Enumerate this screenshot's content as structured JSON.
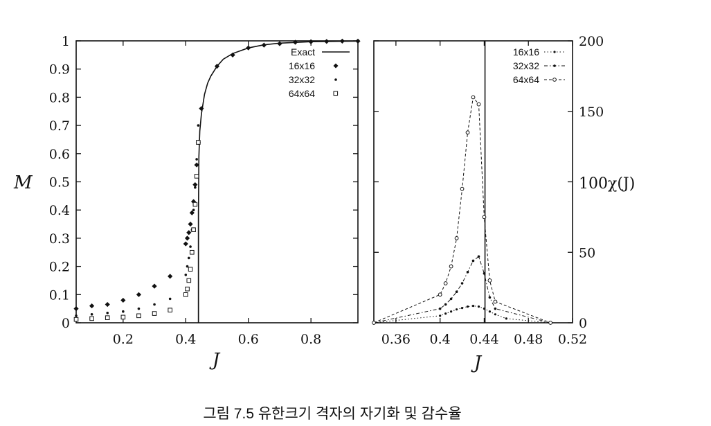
{
  "caption": "그림 7.5  유한크기 격자의 자기화 및 감수율",
  "chart_data": [
    {
      "type": "scatter",
      "xlabel": "J",
      "ylabel": "M",
      "xlim": [
        0.05,
        0.95
      ],
      "ylim": [
        0,
        1
      ],
      "xticks": [
        0.2,
        0.4,
        0.6,
        0.8
      ],
      "xtick_labels": [
        "0.2",
        "0.4",
        "0.6",
        "0.8"
      ],
      "yticks": [
        0,
        0.1,
        0.2,
        0.3,
        0.4,
        0.5,
        0.6,
        0.7,
        0.8,
        0.9,
        1
      ],
      "ytick_labels": [
        "0",
        "0.1",
        "0.2",
        "0.3",
        "0.4",
        "0.5",
        "0.6",
        "0.7",
        "0.8",
        "0.9",
        "1"
      ],
      "critical_J": 0.4407,
      "legend_position": "top-right",
      "series": [
        {
          "name": "Exact",
          "style": "line",
          "x": [
            0.4407,
            0.4407,
            0.442,
            0.445,
            0.45,
            0.46,
            0.47,
            0.48,
            0.5,
            0.52,
            0.55,
            0.6,
            0.65,
            0.7,
            0.8,
            0.95
          ],
          "y": [
            0,
            0.4,
            0.59,
            0.68,
            0.74,
            0.81,
            0.85,
            0.875,
            0.91,
            0.935,
            0.955,
            0.975,
            0.986,
            0.992,
            0.997,
            0.999
          ]
        },
        {
          "name": "16x16",
          "style": "filled-diamond",
          "x": [
            0.05,
            0.1,
            0.15,
            0.2,
            0.25,
            0.3,
            0.35,
            0.4,
            0.405,
            0.41,
            0.415,
            0.42,
            0.425,
            0.43,
            0.435,
            0.44,
            0.45,
            0.5,
            0.55,
            0.6,
            0.65,
            0.7,
            0.75,
            0.8,
            0.85,
            0.9,
            0.95
          ],
          "y": [
            0.05,
            0.06,
            0.065,
            0.08,
            0.1,
            0.13,
            0.165,
            0.28,
            0.3,
            0.32,
            0.35,
            0.39,
            0.43,
            0.49,
            0.56,
            0.64,
            0.76,
            0.91,
            0.95,
            0.975,
            0.985,
            0.99,
            0.995,
            0.997,
            0.998,
            0.999,
            0.999
          ]
        },
        {
          "name": "32x32",
          "style": "small-dot",
          "x": [
            0.05,
            0.1,
            0.15,
            0.2,
            0.25,
            0.3,
            0.35,
            0.4,
            0.405,
            0.41,
            0.415,
            0.42,
            0.425,
            0.43,
            0.435,
            0.44
          ],
          "y": [
            0.025,
            0.03,
            0.035,
            0.04,
            0.05,
            0.065,
            0.085,
            0.17,
            0.2,
            0.23,
            0.27,
            0.33,
            0.4,
            0.48,
            0.58,
            0.7
          ]
        },
        {
          "name": "64x64",
          "style": "open-square",
          "x": [
            0.05,
            0.1,
            0.15,
            0.2,
            0.25,
            0.3,
            0.35,
            0.4,
            0.405,
            0.41,
            0.415,
            0.42,
            0.425,
            0.43,
            0.435,
            0.44
          ],
          "y": [
            0.012,
            0.015,
            0.018,
            0.02,
            0.025,
            0.033,
            0.045,
            0.1,
            0.12,
            0.15,
            0.19,
            0.25,
            0.33,
            0.42,
            0.52,
            0.64
          ]
        }
      ]
    },
    {
      "type": "line",
      "xlabel": "J",
      "ylabel": "100χ(J)",
      "xlim": [
        0.34,
        0.52
      ],
      "ylim": [
        0,
        200
      ],
      "xticks": [
        0.36,
        0.4,
        0.44,
        0.48,
        0.52
      ],
      "xtick_labels": [
        "0.36",
        "0.4",
        "0.44",
        "0.48",
        "0.52"
      ],
      "yticks": [
        0,
        50,
        100,
        150,
        200
      ],
      "ytick_labels": [
        "0",
        "50",
        "100",
        "150",
        "200"
      ],
      "critical_J": 0.4407,
      "legend_position": "top-right",
      "series": [
        {
          "name": "16x16",
          "style": "dotted",
          "x": [
            0.34,
            0.4,
            0.405,
            0.41,
            0.415,
            0.42,
            0.425,
            0.43,
            0.435,
            0.44,
            0.445,
            0.45,
            0.46,
            0.5
          ],
          "y": [
            0,
            5,
            6.5,
            8,
            9.5,
            10.5,
            11.5,
            12,
            11.5,
            10,
            8,
            6,
            3,
            0
          ]
        },
        {
          "name": "32x32",
          "style": "dash-dot",
          "x": [
            0.34,
            0.4,
            0.405,
            0.41,
            0.415,
            0.42,
            0.425,
            0.43,
            0.435,
            0.44,
            0.445,
            0.45,
            0.5
          ],
          "y": [
            0,
            10,
            13,
            17,
            22,
            28,
            36,
            44,
            47,
            35,
            18,
            10,
            0
          ]
        },
        {
          "name": "64x64",
          "style": "dash",
          "x": [
            0.34,
            0.4,
            0.405,
            0.41,
            0.415,
            0.42,
            0.425,
            0.43,
            0.435,
            0.44,
            0.445,
            0.45,
            0.5
          ],
          "y": [
            0,
            20,
            28,
            40,
            60,
            95,
            135,
            160,
            155,
            75,
            30,
            15,
            0
          ]
        }
      ]
    }
  ]
}
